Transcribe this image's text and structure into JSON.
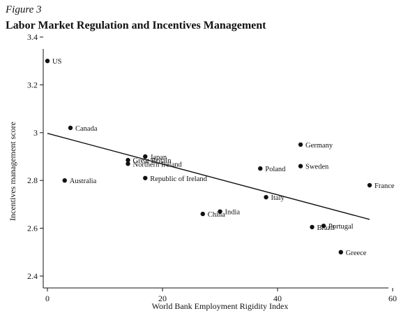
{
  "figure": {
    "label": "Figure 3",
    "title": "Labor Market Regulation and Incentives Management"
  },
  "chart_data": {
    "type": "scatter",
    "xlabel": "World Bank Employment Rigidity Index",
    "ylabel": "Incentives management score",
    "xlim": [
      0,
      60
    ],
    "ylim": [
      2.4,
      3.4
    ],
    "xticks": [
      0,
      20,
      40,
      60
    ],
    "yticks": [
      2.4,
      2.6,
      2.8,
      3.0,
      3.2,
      3.4
    ],
    "xtick_labels": [
      "0",
      "20",
      "40",
      "60"
    ],
    "ytick_labels": [
      "2.4",
      "2.6",
      "2.8",
      "3",
      "3.2",
      "3.4"
    ],
    "grid": false,
    "points": [
      {
        "label": "US",
        "x": 0,
        "y": 3.3
      },
      {
        "label": "Canada",
        "x": 4,
        "y": 3.02
      },
      {
        "label": "Australia",
        "x": 3,
        "y": 2.8
      },
      {
        "label": "Japan",
        "x": 17,
        "y": 2.9
      },
      {
        "label": "Great Britain",
        "x": 14,
        "y": 2.885
      },
      {
        "label": "Northern Ireland",
        "x": 14,
        "y": 2.87
      },
      {
        "label": "Republic of Ireland",
        "x": 17,
        "y": 2.81
      },
      {
        "label": "China",
        "x": 27,
        "y": 2.66
      },
      {
        "label": "India",
        "x": 30,
        "y": 2.67
      },
      {
        "label": "Poland",
        "x": 37,
        "y": 2.85
      },
      {
        "label": "Italy",
        "x": 38,
        "y": 2.73
      },
      {
        "label": "Germany",
        "x": 44,
        "y": 2.95
      },
      {
        "label": "Sweden",
        "x": 44,
        "y": 2.86
      },
      {
        "label": "Brazil",
        "x": 46,
        "y": 2.605
      },
      {
        "label": "Portugal",
        "x": 48,
        "y": 2.61
      },
      {
        "label": "Greece",
        "x": 51,
        "y": 2.5
      },
      {
        "label": "France",
        "x": 56,
        "y": 2.78
      }
    ],
    "fit_line": {
      "x": [
        0,
        56
      ],
      "y": [
        2.997,
        2.637
      ]
    }
  }
}
